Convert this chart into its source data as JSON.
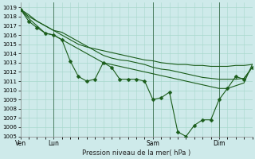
{
  "title": "Pression niveau de la mer( hPa )",
  "bg_color": "#ceeaea",
  "grid_color": "#a8d8cc",
  "line_color": "#1a5c1a",
  "marker_color": "#1a5c1a",
  "ylim": [
    1005,
    1019.5
  ],
  "xlim": [
    0,
    168
  ],
  "xtick_positions": [
    0,
    24,
    96,
    144
  ],
  "xtick_labels": [
    "Ven",
    "Lun",
    "Sam",
    "Dim"
  ],
  "vline_positions": [
    24,
    96,
    144
  ],
  "vline_color": "#336644",
  "series_no_markers": [
    {
      "x": [
        0,
        6,
        12,
        18,
        24,
        30,
        36,
        42,
        48,
        54,
        60,
        66,
        72,
        78,
        84,
        90,
        96,
        102,
        108,
        114,
        120,
        126,
        132,
        138,
        144,
        150,
        156,
        162,
        168
      ],
      "y": [
        1018.8,
        1018.2,
        1017.5,
        1017.0,
        1016.5,
        1016.0,
        1015.5,
        1015.0,
        1014.7,
        1014.5,
        1014.3,
        1014.1,
        1013.9,
        1013.7,
        1013.5,
        1013.3,
        1013.2,
        1013.0,
        1012.9,
        1012.8,
        1012.8,
        1012.7,
        1012.7,
        1012.6,
        1012.6,
        1012.6,
        1012.7,
        1012.7,
        1012.8
      ]
    },
    {
      "x": [
        0,
        6,
        12,
        18,
        24,
        30,
        36,
        42,
        48,
        54,
        60,
        66,
        72,
        78,
        84,
        90,
        96,
        102,
        108,
        114,
        120,
        126,
        132,
        138,
        144,
        150,
        156,
        162,
        168
      ],
      "y": [
        1018.8,
        1018.0,
        1017.5,
        1017.0,
        1016.5,
        1016.3,
        1015.8,
        1015.3,
        1014.8,
        1014.3,
        1013.8,
        1013.5,
        1013.3,
        1013.2,
        1013.0,
        1012.8,
        1012.5,
        1012.3,
        1012.2,
        1012.0,
        1011.8,
        1011.6,
        1011.4,
        1011.3,
        1011.2,
        1011.2,
        1011.2,
        1011.3,
        1012.5
      ]
    },
    {
      "x": [
        0,
        6,
        12,
        18,
        24,
        30,
        36,
        42,
        48,
        54,
        60,
        66,
        72,
        78,
        84,
        90,
        96,
        102,
        108,
        114,
        120,
        126,
        132,
        138,
        144,
        150,
        156,
        162,
        168
      ],
      "y": [
        1018.8,
        1017.8,
        1017.0,
        1016.2,
        1016.0,
        1015.5,
        1015.0,
        1014.5,
        1014.0,
        1013.5,
        1013.0,
        1012.8,
        1012.6,
        1012.4,
        1012.2,
        1012.0,
        1011.8,
        1011.6,
        1011.4,
        1011.2,
        1011.0,
        1010.8,
        1010.6,
        1010.4,
        1010.2,
        1010.2,
        1010.5,
        1010.8,
        1012.8
      ]
    }
  ],
  "series_with_markers": [
    {
      "x": [
        0,
        6,
        12,
        18,
        24,
        30,
        36,
        42,
        48,
        54,
        60,
        66,
        72,
        78,
        84,
        90,
        96,
        102,
        108,
        114,
        120,
        126,
        132,
        138,
        144,
        150,
        156,
        162,
        168
      ],
      "y": [
        1018.8,
        1017.5,
        1016.8,
        1016.2,
        1016.0,
        1015.5,
        1013.2,
        1011.5,
        1011.0,
        1011.2,
        1013.0,
        1012.5,
        1011.2,
        1011.2,
        1011.2,
        1011.0,
        1009.0,
        1009.2,
        1009.8,
        1005.5,
        1005.0,
        1006.2,
        1006.8,
        1006.8,
        1009.0,
        1010.2,
        1011.5,
        1011.2,
        1012.5
      ]
    }
  ]
}
